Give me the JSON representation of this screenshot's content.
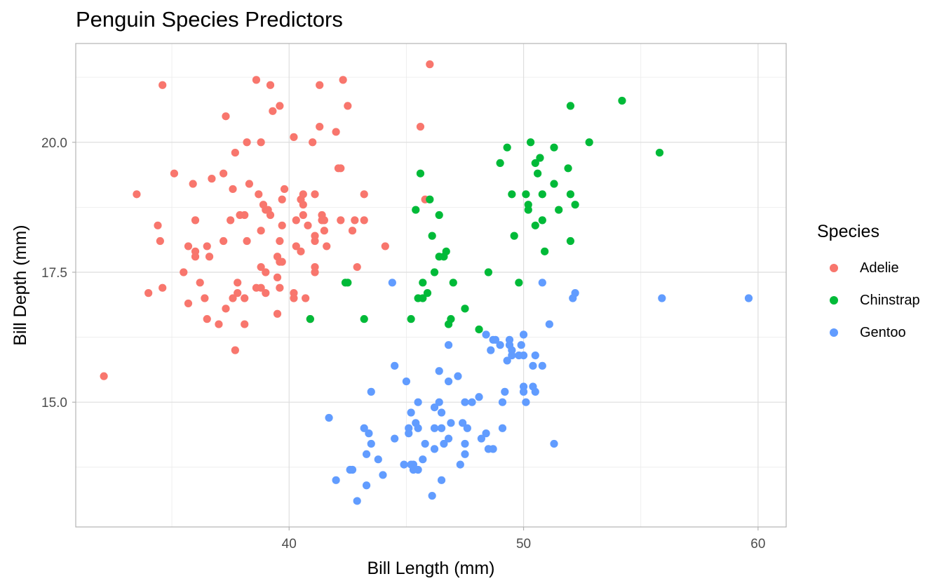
{
  "chart_data": {
    "type": "scatter",
    "title": "Penguin Species Predictors",
    "xlabel": "Bill Length (mm)",
    "ylabel": "Bill Depth (mm)",
    "xlim": [
      30.9,
      61.2
    ],
    "ylim": [
      12.6,
      21.9
    ],
    "x_ticks": [
      40,
      50,
      60
    ],
    "x_tick_labels": [
      "40",
      "50",
      "60"
    ],
    "y_ticks": [
      15.0,
      17.5,
      20.0
    ],
    "y_tick_labels": [
      "15.0",
      "17.5",
      "20.0"
    ],
    "x_minor_ticks": [
      35,
      45,
      55
    ],
    "y_minor_ticks": [
      13.75,
      16.25,
      18.75,
      21.25
    ],
    "grid": true,
    "legend_position": "right",
    "legend_title": "Species",
    "series": [
      {
        "name": "Adelie",
        "color": "#F8766D",
        "points": [
          [
            32.1,
            15.5
          ],
          [
            33.5,
            19.0
          ],
          [
            34.0,
            17.1
          ],
          [
            34.4,
            18.4
          ],
          [
            34.5,
            18.1
          ],
          [
            34.6,
            21.1
          ],
          [
            34.6,
            17.2
          ],
          [
            35.1,
            19.4
          ],
          [
            35.5,
            17.5
          ],
          [
            35.7,
            16.9
          ],
          [
            35.7,
            18.0
          ],
          [
            35.9,
            19.2
          ],
          [
            36.0,
            18.5
          ],
          [
            36.0,
            17.9
          ],
          [
            36.0,
            17.8
          ],
          [
            36.2,
            17.3
          ],
          [
            36.4,
            17.0
          ],
          [
            36.5,
            16.6
          ],
          [
            36.5,
            18.0
          ],
          [
            36.6,
            17.8
          ],
          [
            36.7,
            19.3
          ],
          [
            37.0,
            16.5
          ],
          [
            37.2,
            18.1
          ],
          [
            37.2,
            19.4
          ],
          [
            37.3,
            20.5
          ],
          [
            37.3,
            16.8
          ],
          [
            37.5,
            18.5
          ],
          [
            37.6,
            17.0
          ],
          [
            37.6,
            19.1
          ],
          [
            37.7,
            19.8
          ],
          [
            37.7,
            16.0
          ],
          [
            37.8,
            17.1
          ],
          [
            37.8,
            17.3
          ],
          [
            37.9,
            18.6
          ],
          [
            38.1,
            17.0
          ],
          [
            38.1,
            18.6
          ],
          [
            38.1,
            16.5
          ],
          [
            38.2,
            18.1
          ],
          [
            38.2,
            20.0
          ],
          [
            38.3,
            19.2
          ],
          [
            38.6,
            21.2
          ],
          [
            38.6,
            17.2
          ],
          [
            38.7,
            19.0
          ],
          [
            38.8,
            17.2
          ],
          [
            38.8,
            17.6
          ],
          [
            38.8,
            20.0
          ],
          [
            38.8,
            18.3
          ],
          [
            38.9,
            18.8
          ],
          [
            39.0,
            17.1
          ],
          [
            39.0,
            17.5
          ],
          [
            39.0,
            18.7
          ],
          [
            39.1,
            18.7
          ],
          [
            39.2,
            21.1
          ],
          [
            39.2,
            18.6
          ],
          [
            39.3,
            20.6
          ],
          [
            39.5,
            16.7
          ],
          [
            39.5,
            17.8
          ],
          [
            39.5,
            17.4
          ],
          [
            39.6,
            17.7
          ],
          [
            39.6,
            17.2
          ],
          [
            39.6,
            18.1
          ],
          [
            39.6,
            20.7
          ],
          [
            39.7,
            18.9
          ],
          [
            39.7,
            17.7
          ],
          [
            39.7,
            18.4
          ],
          [
            39.8,
            19.1
          ],
          [
            40.2,
            20.1
          ],
          [
            40.2,
            17.0
          ],
          [
            40.2,
            17.1
          ],
          [
            40.3,
            18.5
          ],
          [
            40.3,
            18.0
          ],
          [
            40.5,
            17.9
          ],
          [
            40.5,
            18.9
          ],
          [
            40.6,
            18.6
          ],
          [
            40.6,
            19.0
          ],
          [
            40.6,
            18.8
          ],
          [
            40.7,
            17.0
          ],
          [
            40.8,
            18.4
          ],
          [
            40.9,
            16.6
          ],
          [
            41.0,
            20.0
          ],
          [
            41.1,
            18.2
          ],
          [
            41.1,
            19.0
          ],
          [
            41.1,
            17.6
          ],
          [
            41.1,
            17.5
          ],
          [
            41.1,
            18.1
          ],
          [
            41.3,
            21.1
          ],
          [
            41.3,
            20.3
          ],
          [
            41.4,
            18.6
          ],
          [
            41.4,
            18.5
          ],
          [
            41.5,
            18.5
          ],
          [
            41.5,
            18.3
          ],
          [
            41.6,
            18.0
          ],
          [
            42.0,
            20.2
          ],
          [
            42.1,
            19.5
          ],
          [
            42.2,
            18.5
          ],
          [
            42.2,
            19.5
          ],
          [
            42.3,
            21.2
          ],
          [
            42.5,
            20.7
          ],
          [
            42.7,
            18.3
          ],
          [
            42.8,
            18.5
          ],
          [
            42.9,
            17.6
          ],
          [
            43.2,
            18.5
          ],
          [
            43.2,
            19.0
          ],
          [
            44.1,
            18.0
          ],
          [
            45.6,
            20.3
          ],
          [
            45.8,
            18.9
          ],
          [
            46.0,
            21.5
          ]
        ]
      },
      {
        "name": "Chinstrap",
        "color": "#00BA38",
        "points": [
          [
            40.9,
            16.6
          ],
          [
            42.4,
            17.3
          ],
          [
            42.5,
            17.3
          ],
          [
            43.2,
            16.6
          ],
          [
            45.2,
            16.6
          ],
          [
            45.4,
            18.7
          ],
          [
            45.5,
            17.0
          ],
          [
            45.6,
            19.4
          ],
          [
            45.7,
            17.3
          ],
          [
            45.7,
            17.0
          ],
          [
            45.9,
            17.1
          ],
          [
            46.0,
            18.9
          ],
          [
            46.1,
            18.2
          ],
          [
            46.2,
            17.5
          ],
          [
            46.4,
            17.8
          ],
          [
            46.4,
            18.6
          ],
          [
            46.6,
            17.8
          ],
          [
            46.7,
            17.9
          ],
          [
            46.8,
            16.5
          ],
          [
            46.9,
            16.6
          ],
          [
            47.0,
            17.3
          ],
          [
            47.5,
            16.8
          ],
          [
            48.1,
            16.4
          ],
          [
            48.5,
            17.5
          ],
          [
            49.0,
            19.6
          ],
          [
            49.3,
            19.9
          ],
          [
            49.5,
            19.0
          ],
          [
            49.6,
            18.2
          ],
          [
            49.8,
            17.3
          ],
          [
            50.1,
            19.0
          ],
          [
            50.2,
            18.7
          ],
          [
            50.2,
            18.8
          ],
          [
            50.3,
            20.0
          ],
          [
            50.5,
            19.6
          ],
          [
            50.5,
            18.4
          ],
          [
            50.6,
            19.4
          ],
          [
            50.7,
            19.7
          ],
          [
            50.8,
            18.5
          ],
          [
            50.8,
            19.0
          ],
          [
            50.9,
            17.9
          ],
          [
            51.3,
            19.9
          ],
          [
            51.3,
            19.2
          ],
          [
            51.5,
            18.7
          ],
          [
            51.9,
            19.5
          ],
          [
            52.0,
            18.1
          ],
          [
            52.0,
            19.0
          ],
          [
            52.0,
            20.7
          ],
          [
            52.2,
            18.8
          ],
          [
            52.8,
            20.0
          ],
          [
            54.2,
            20.8
          ],
          [
            55.8,
            19.8
          ]
        ]
      },
      {
        "name": "Gentoo",
        "color": "#619CFF",
        "points": [
          [
            41.7,
            14.7
          ],
          [
            42.0,
            13.5
          ],
          [
            42.6,
            13.7
          ],
          [
            42.7,
            13.7
          ],
          [
            42.9,
            13.1
          ],
          [
            43.2,
            14.5
          ],
          [
            43.3,
            14.0
          ],
          [
            43.3,
            13.4
          ],
          [
            43.4,
            14.4
          ],
          [
            43.5,
            15.2
          ],
          [
            43.5,
            14.2
          ],
          [
            43.8,
            13.9
          ],
          [
            44.0,
            13.6
          ],
          [
            44.4,
            17.3
          ],
          [
            44.5,
            14.3
          ],
          [
            44.5,
            15.7
          ],
          [
            44.9,
            13.8
          ],
          [
            45.0,
            15.4
          ],
          [
            45.1,
            14.5
          ],
          [
            45.1,
            14.4
          ],
          [
            45.2,
            13.8
          ],
          [
            45.2,
            14.8
          ],
          [
            45.3,
            13.8
          ],
          [
            45.3,
            13.7
          ],
          [
            45.4,
            14.6
          ],
          [
            45.5,
            13.7
          ],
          [
            45.5,
            14.5
          ],
          [
            45.5,
            15.0
          ],
          [
            45.7,
            13.9
          ],
          [
            45.8,
            14.2
          ],
          [
            46.1,
            13.2
          ],
          [
            46.2,
            14.5
          ],
          [
            46.2,
            14.1
          ],
          [
            46.2,
            14.9
          ],
          [
            46.4,
            15.0
          ],
          [
            46.4,
            15.6
          ],
          [
            46.5,
            13.5
          ],
          [
            46.5,
            14.5
          ],
          [
            46.5,
            14.8
          ],
          [
            46.6,
            14.2
          ],
          [
            46.8,
            14.3
          ],
          [
            46.8,
            15.4
          ],
          [
            46.8,
            16.1
          ],
          [
            46.9,
            14.6
          ],
          [
            47.2,
            15.5
          ],
          [
            47.3,
            13.8
          ],
          [
            47.4,
            14.6
          ],
          [
            47.5,
            15.0
          ],
          [
            47.5,
            14.2
          ],
          [
            47.5,
            14.0
          ],
          [
            47.6,
            14.5
          ],
          [
            47.8,
            15.0
          ],
          [
            48.1,
            15.1
          ],
          [
            48.2,
            14.3
          ],
          [
            48.4,
            14.4
          ],
          [
            48.4,
            16.3
          ],
          [
            48.5,
            14.1
          ],
          [
            48.6,
            16.0
          ],
          [
            48.7,
            14.1
          ],
          [
            48.7,
            16.2
          ],
          [
            48.8,
            16.2
          ],
          [
            49.0,
            16.1
          ],
          [
            49.1,
            15.0
          ],
          [
            49.1,
            14.5
          ],
          [
            49.2,
            15.2
          ],
          [
            49.3,
            15.8
          ],
          [
            49.4,
            16.2
          ],
          [
            49.4,
            16.1
          ],
          [
            49.5,
            16.0
          ],
          [
            49.5,
            15.9
          ],
          [
            49.8,
            15.9
          ],
          [
            49.9,
            16.1
          ],
          [
            50.0,
            15.2
          ],
          [
            50.0,
            15.3
          ],
          [
            50.0,
            15.9
          ],
          [
            50.0,
            16.3
          ],
          [
            50.1,
            15.0
          ],
          [
            50.4,
            15.7
          ],
          [
            50.4,
            15.3
          ],
          [
            50.5,
            15.9
          ],
          [
            50.5,
            15.2
          ],
          [
            50.8,
            17.3
          ],
          [
            50.8,
            15.7
          ],
          [
            51.1,
            16.5
          ],
          [
            51.3,
            14.2
          ],
          [
            52.1,
            17.0
          ],
          [
            52.2,
            17.1
          ],
          [
            55.9,
            17.0
          ],
          [
            59.6,
            17.0
          ]
        ]
      }
    ]
  }
}
